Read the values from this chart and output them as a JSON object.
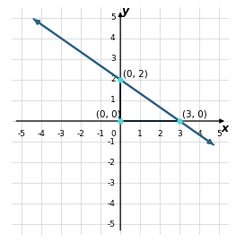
{
  "xlim": [
    -5.5,
    5.5
  ],
  "ylim": [
    -5.5,
    5.5
  ],
  "xlim_view": [
    -5,
    5
  ],
  "ylim_view": [
    -5,
    5
  ],
  "xticks": [
    -5,
    -4,
    -3,
    -2,
    -1,
    0,
    1,
    2,
    3,
    4,
    5
  ],
  "yticks": [
    -5,
    -4,
    -3,
    -2,
    -1,
    0,
    1,
    2,
    3,
    4,
    5
  ],
  "xlabel": "x",
  "ylabel": "y",
  "line_color": "#2b6080",
  "line_x_start": -4.5,
  "line_y_start": 5.0,
  "line_x_end": 4.83,
  "line_y_end": -1.22,
  "point1": [
    0,
    2
  ],
  "point2": [
    3,
    0
  ],
  "point3": [
    0,
    0
  ],
  "point_color": "#4dd9d9",
  "triangle_color": "#2b6080",
  "label1": "(0, 2)",
  "label2": "(3, 0)",
  "label3": "(0, 0)",
  "label_fontsize": 7.5,
  "axis_label_fontsize": 9,
  "tick_fontsize": 6.5,
  "grid_color": "#d0d0d0",
  "background_color": "#ffffff"
}
